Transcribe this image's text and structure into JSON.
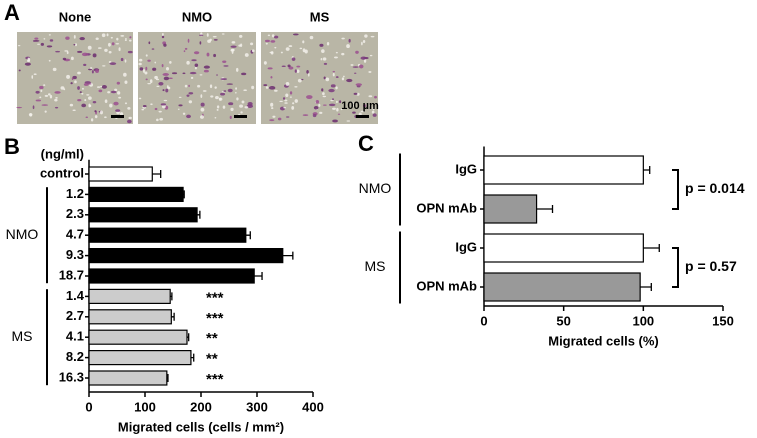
{
  "panel_a": {
    "letter": "A",
    "images": [
      "None",
      "NMO",
      "MS"
    ],
    "scale_bar": "100 µm"
  },
  "chart_data": [
    {
      "type": "hbar",
      "letter": "B",
      "category_header": "(ng/ml)",
      "categories": [
        "control",
        "1.2",
        "2.3",
        "4.7",
        "9.3",
        "18.7",
        "1.4",
        "2.7",
        "4.1",
        "8.2",
        "16.3"
      ],
      "groups": [
        null,
        "NMO",
        "NMO",
        "NMO",
        "NMO",
        "NMO",
        "MS",
        "MS",
        "MS",
        "MS",
        "MS"
      ],
      "values": [
        113,
        168,
        193,
        280,
        346,
        295,
        145,
        147,
        175,
        182,
        139
      ],
      "errors": [
        15,
        2,
        5,
        8,
        18,
        14,
        3,
        5,
        3,
        5,
        2
      ],
      "colors": [
        "#ffffff",
        "#000000",
        "#000000",
        "#000000",
        "#000000",
        "#000000",
        "#cccccc",
        "#cccccc",
        "#cccccc",
        "#cccccc",
        "#cccccc"
      ],
      "value_labels": [
        null,
        null,
        null,
        null,
        null,
        null,
        "***",
        "***",
        "**",
        "**",
        "***"
      ],
      "xlim": [
        0,
        400
      ],
      "xticks": [
        0,
        100,
        200,
        300,
        400
      ],
      "xlabel": "Migrated cells (cells / mm²)"
    },
    {
      "type": "hbar",
      "letter": "C",
      "categories": [
        "IgG",
        "OPN mAb",
        "IgG",
        "OPN mAb"
      ],
      "groups": [
        "NMO",
        "NMO",
        "MS",
        "MS"
      ],
      "values": [
        100,
        33,
        100,
        98
      ],
      "errors": [
        4,
        10,
        10,
        7
      ],
      "colors": [
        "#ffffff",
        "#999999",
        "#ffffff",
        "#999999"
      ],
      "p_values": [
        "p = 0.014",
        "p = 0.57"
      ],
      "xlim": [
        0,
        150
      ],
      "xticks": [
        0,
        50,
        100,
        150
      ],
      "xlabel": "Migrated cells (%)"
    }
  ]
}
